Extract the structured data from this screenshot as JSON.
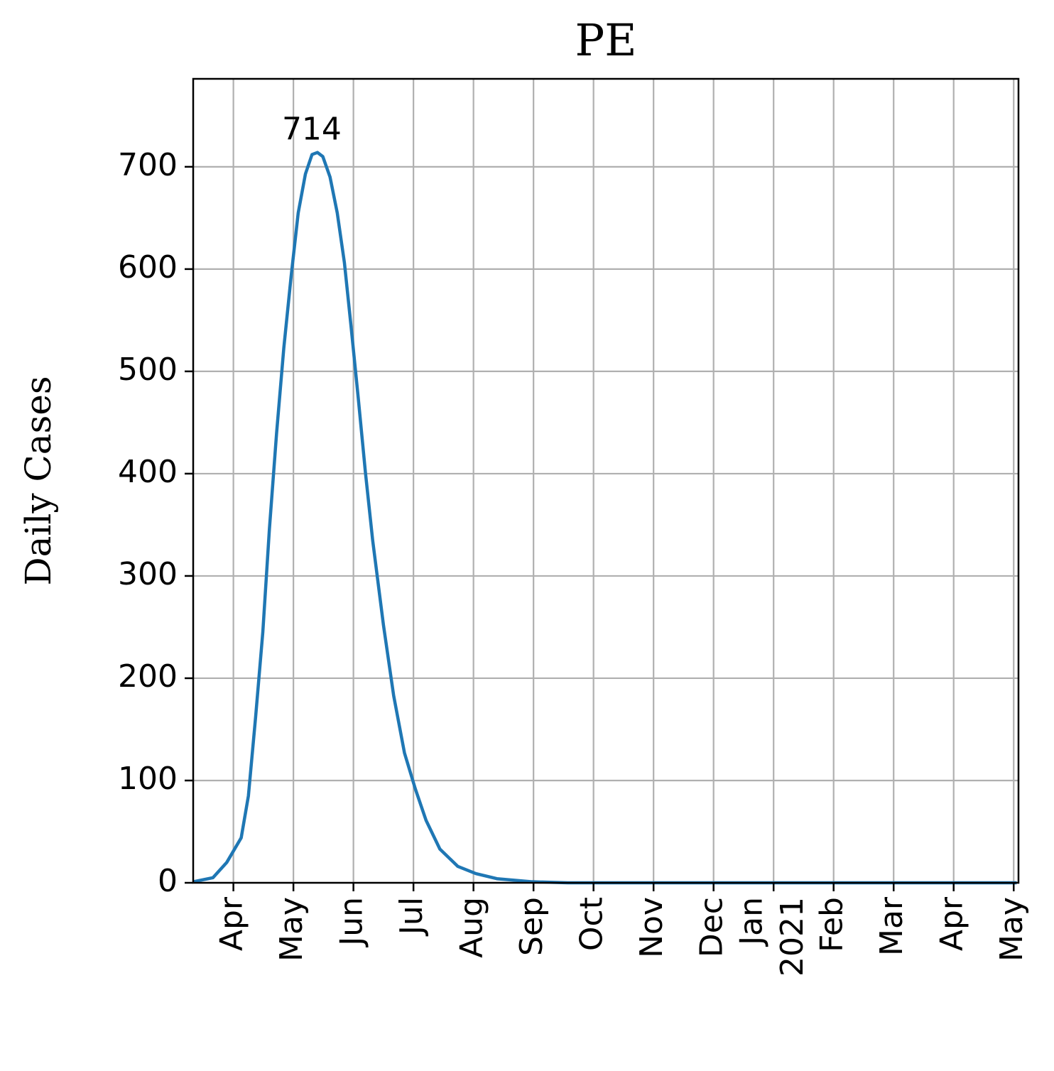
{
  "chart_data": {
    "type": "line",
    "title": "PE",
    "ylabel": "Daily Cases",
    "x": [
      3.33,
      3.66,
      3.89,
      4.13,
      4.25,
      4.37,
      4.49,
      4.6,
      4.72,
      4.84,
      4.96,
      5.08,
      5.2,
      5.31,
      5.4,
      5.49,
      5.61,
      5.73,
      5.85,
      5.96,
      6.08,
      6.2,
      6.32,
      6.5,
      6.67,
      6.85,
      7.03,
      7.21,
      7.44,
      7.74,
      8.04,
      8.39,
      8.98,
      9.57,
      10.76,
      13.12,
      17.0,
      17.05
    ],
    "series": [
      {
        "color": "#1f77b4",
        "values": [
          1,
          5,
          20,
          44,
          85,
          162,
          245,
          346,
          440,
          523,
          592,
          655,
          693,
          712,
          714,
          710,
          690,
          655,
          606,
          544,
          474,
          401,
          335,
          252,
          183,
          127,
          92,
          61,
          33,
          16,
          9,
          4,
          1,
          0,
          0,
          0,
          0,
          0
        ]
      }
    ],
    "annotations": [
      {
        "label": "714",
        "x": 5.4,
        "y": 714
      }
    ],
    "xlim": [
      3.33,
      17.08
    ],
    "xticks": [
      {
        "value": 4,
        "label": "Apr"
      },
      {
        "value": 5,
        "label": "May"
      },
      {
        "value": 6,
        "label": "Jun"
      },
      {
        "value": 7,
        "label": "Jul"
      },
      {
        "value": 8,
        "label": "Aug"
      },
      {
        "value": 9,
        "label": "Sep"
      },
      {
        "value": 10,
        "label": "Oct"
      },
      {
        "value": 11,
        "label": "Nov"
      },
      {
        "value": 12,
        "label": "Dec"
      },
      {
        "value": 13,
        "label": "Jan\n2021"
      },
      {
        "value": 14,
        "label": "Feb"
      },
      {
        "value": 15,
        "label": "Mar"
      },
      {
        "value": 16,
        "label": "Apr"
      },
      {
        "value": 17,
        "label": "May"
      }
    ],
    "ylim": [
      0,
      786
    ],
    "yticks": [
      0,
      100,
      200,
      300,
      400,
      500,
      600,
      700
    ],
    "grid": true
  }
}
